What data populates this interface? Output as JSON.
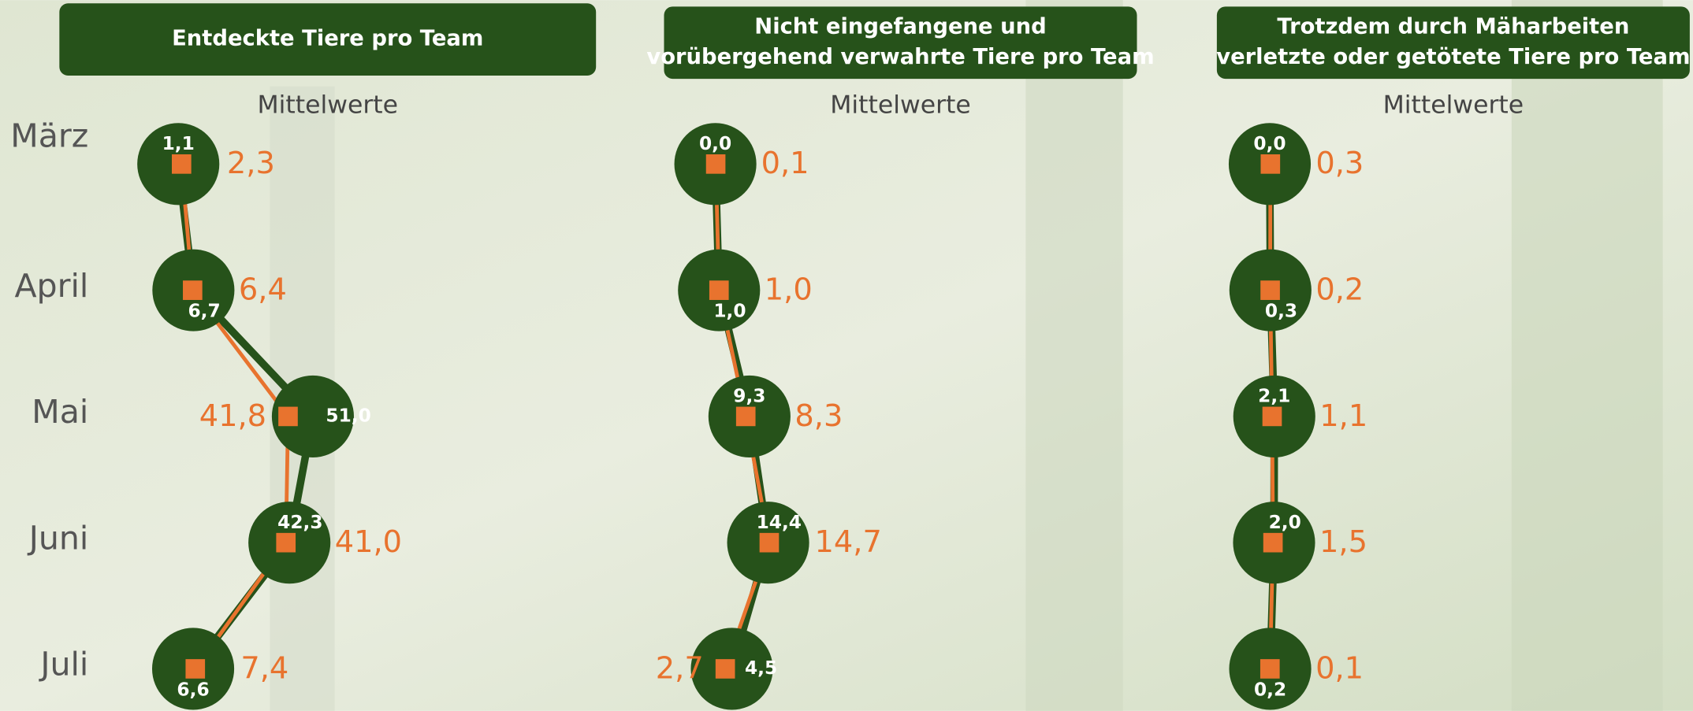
{
  "chart_data": [
    {
      "type": "dot-line",
      "title": [
        "Entdeckte Tiere pro Team"
      ],
      "subtitle": "Mittelwerte",
      "categories": [
        "März",
        "April",
        "Mai",
        "Juni",
        "Juli"
      ],
      "xlim": [
        -43,
        156
      ],
      "series": [
        {
          "color": "#26521a",
          "values": [
            1.1,
            6.7,
            51.0,
            42.3,
            6.6
          ],
          "value_labels": [
            "1,1",
            "6,7",
            "51,0",
            "42,3",
            "6,6"
          ]
        },
        {
          "color": "#e8732e",
          "values": [
            2.3,
            6.4,
            41.8,
            41.0,
            7.4
          ],
          "value_labels": [
            "2,3",
            "6,4",
            "41,8",
            "41,0",
            "7,4"
          ]
        }
      ]
    },
    {
      "type": "dot-line",
      "title": [
        "Nicht eingefangene und",
        "vorübergehend verwahrte Tiere pro Team"
      ],
      "subtitle": "Mittelwerte",
      "xlim": [
        -14,
        115
      ],
      "series": [
        {
          "color": "#26521a",
          "values": [
            0.0,
            1.0,
            9.3,
            14.4,
            4.5
          ],
          "value_labels": [
            "0,0",
            "1,0",
            "9,3",
            "14,4",
            "4,5"
          ]
        },
        {
          "color": "#e8732e",
          "values": [
            0.1,
            1.0,
            8.3,
            14.7,
            2.7
          ],
          "value_labels": [
            "0,1",
            "1,0",
            "8,3",
            "14,7",
            "2,7"
          ]
        }
      ]
    },
    {
      "type": "dot-line",
      "title": [
        "Trotzdem durch Mäharbeiten",
        "verletzte oder getötete Tiere pro Team"
      ],
      "subtitle": "Mittelwerte",
      "xlim": [
        -24.5,
        194.5
      ],
      "series": [
        {
          "color": "#26521a",
          "values": [
            0.0,
            0.3,
            2.1,
            2.0,
            0.2
          ],
          "value_labels": [
            "0,0",
            "0,3",
            "2,1",
            "2,0",
            "0,2"
          ]
        },
        {
          "color": "#e8732e",
          "values": [
            0.3,
            0.2,
            1.1,
            1.5,
            0.1
          ],
          "value_labels": [
            "0,3",
            "0,2",
            "1,1",
            "1,5",
            "0,1"
          ]
        }
      ]
    }
  ]
}
